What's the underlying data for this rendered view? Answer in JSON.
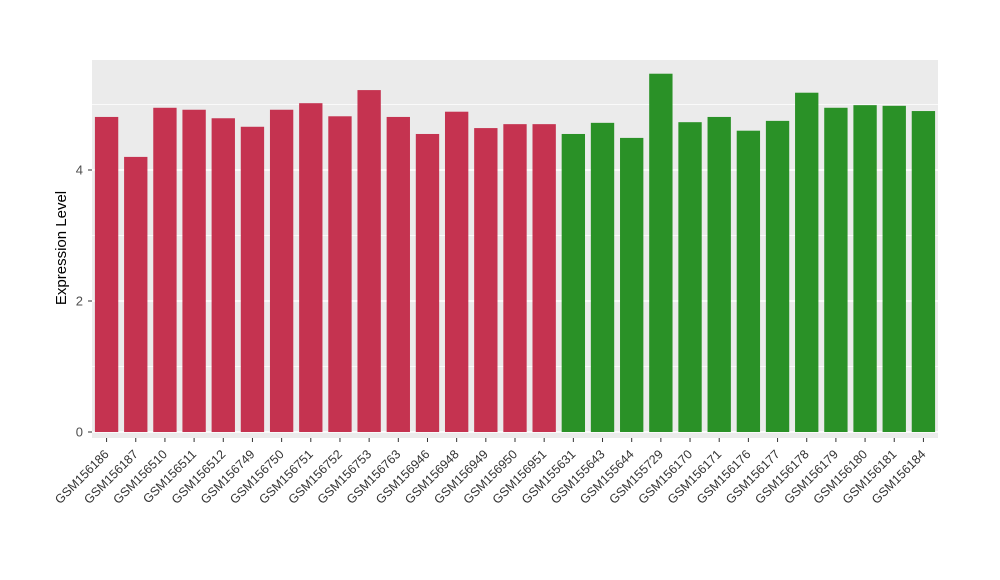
{
  "chart_data": {
    "type": "bar",
    "title": "",
    "xlabel": "",
    "ylabel": "Expression Level",
    "ylim": [
      0,
      5.7
    ],
    "yticks": [
      0,
      2,
      4
    ],
    "minor_yticks": [
      1,
      3,
      5
    ],
    "grid": true,
    "legend_position": "none",
    "panel_bg": "#EBEBEB",
    "grid_color": "#FFFFFF",
    "categories": [
      "GSM156186",
      "GSM156187",
      "GSM156510",
      "GSM156511",
      "GSM156512",
      "GSM156749",
      "GSM156750",
      "GSM156751",
      "GSM156752",
      "GSM156753",
      "GSM156763",
      "GSM156946",
      "GSM156948",
      "GSM156949",
      "GSM156950",
      "GSM156951",
      "GSM155631",
      "GSM155643",
      "GSM155644",
      "GSM155729",
      "GSM156170",
      "GSM156171",
      "GSM156176",
      "GSM156177",
      "GSM156178",
      "GSM156179",
      "GSM156180",
      "GSM156181",
      "GSM156184"
    ],
    "series": [
      {
        "name": "Expression Level",
        "values": [
          4.81,
          4.2,
          4.95,
          4.92,
          4.79,
          4.66,
          4.92,
          5.02,
          4.82,
          5.22,
          4.81,
          4.55,
          4.89,
          4.64,
          4.7,
          4.7,
          4.55,
          4.72,
          4.49,
          5.47,
          4.73,
          4.81,
          4.6,
          4.75,
          5.18,
          4.95,
          4.99,
          4.98,
          4.9
        ]
      }
    ],
    "groups": [
      "red",
      "red",
      "red",
      "red",
      "red",
      "red",
      "red",
      "red",
      "red",
      "red",
      "red",
      "red",
      "red",
      "red",
      "red",
      "red",
      "green",
      "green",
      "green",
      "green",
      "green",
      "green",
      "green",
      "green",
      "green",
      "green",
      "green",
      "green",
      "green"
    ],
    "group_colors": {
      "red": "#C53350",
      "green": "#2A9127"
    }
  }
}
